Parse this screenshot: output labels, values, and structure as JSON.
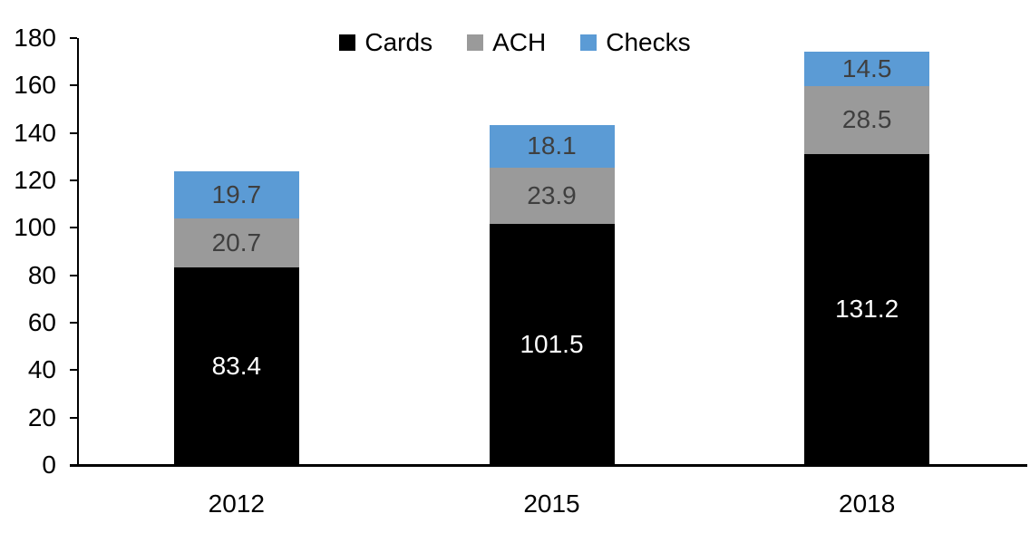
{
  "chart_data": {
    "type": "bar",
    "stacked": true,
    "title": "",
    "xlabel": "",
    "ylabel": "",
    "categories": [
      "2012",
      "2015",
      "2018"
    ],
    "series": [
      {
        "name": "Cards",
        "color": "#000000",
        "label_color": "#FFFFFF",
        "values": [
          83.4,
          101.5,
          131.2
        ]
      },
      {
        "name": "ACH",
        "color": "#9A9A9A",
        "label_color": "#3F3F3F",
        "values": [
          20.7,
          23.9,
          28.5
        ]
      },
      {
        "name": "Checks",
        "color": "#5B9BD5",
        "label_color": "#3F3F3F",
        "values": [
          19.7,
          18.1,
          14.5
        ]
      }
    ],
    "ylim": [
      0,
      180
    ],
    "yticks": [
      0,
      20,
      40,
      60,
      80,
      100,
      120,
      140,
      160,
      180
    ],
    "grid": false,
    "legend_position": "top-center",
    "value_labels": true
  }
}
